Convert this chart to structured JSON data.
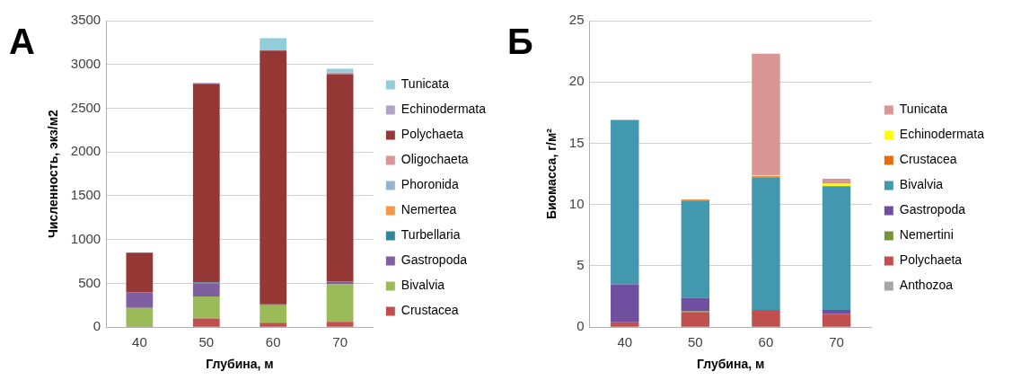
{
  "chart_data": [
    {
      "type": "bar",
      "title": "А",
      "stacked": true,
      "categories": [
        "40",
        "50",
        "60",
        "70"
      ],
      "xlabel": "Глубина, м",
      "ylabel": "Численность, экз/м2",
      "ylim": [
        0,
        3500
      ],
      "yticks": [
        0,
        500,
        1000,
        1500,
        2000,
        2500,
        3000,
        3500
      ],
      "grid": "y",
      "legend": "right",
      "series": [
        {
          "name": "Crustacea",
          "color": "#c0504d",
          "values": [
            10,
            100,
            50,
            60
          ]
        },
        {
          "name": "Bivalvia",
          "color": "#9bbb59",
          "values": [
            210,
            250,
            200,
            430
          ]
        },
        {
          "name": "Gastropoda",
          "color": "#7f5fa0",
          "values": [
            180,
            150,
            10,
            30
          ]
        },
        {
          "name": "Turbellaria",
          "color": "#31859c",
          "values": [
            0,
            10,
            0,
            0
          ]
        },
        {
          "name": "Nemertea",
          "color": "#f79646",
          "values": [
            0,
            0,
            0,
            0
          ]
        },
        {
          "name": "Phoronida",
          "color": "#95b3d7",
          "values": [
            0,
            0,
            0,
            0
          ]
        },
        {
          "name": "Oligochaeta",
          "color": "#d99694",
          "values": [
            0,
            0,
            0,
            0
          ]
        },
        {
          "name": "Polychaeta",
          "color": "#953735",
          "values": [
            450,
            2270,
            2900,
            2370
          ]
        },
        {
          "name": "Echinodermata",
          "color": "#b3a2c7",
          "values": [
            0,
            10,
            0,
            20
          ]
        },
        {
          "name": "Tunicata",
          "color": "#92cddc",
          "values": [
            0,
            0,
            140,
            40
          ]
        }
      ]
    },
    {
      "type": "bar",
      "title": "Б",
      "stacked": true,
      "categories": [
        "40",
        "50",
        "60",
        "70"
      ],
      "xlabel": "Глубина, м",
      "ylabel": "Биомасса, г/м²",
      "ylim": [
        0,
        25
      ],
      "yticks": [
        0,
        5,
        10,
        15,
        20,
        25
      ],
      "grid": "y",
      "legend": "right",
      "series": [
        {
          "name": "Anthozoa",
          "color": "#a6a6a6",
          "values": [
            0,
            0,
            0,
            0
          ]
        },
        {
          "name": "Polychaeta",
          "color": "#c0504d",
          "values": [
            0.4,
            1.2,
            1.4,
            1.1
          ]
        },
        {
          "name": "Nemertini",
          "color": "#77933c",
          "values": [
            0,
            0.1,
            0,
            0
          ]
        },
        {
          "name": "Gastropoda",
          "color": "#6f4f9f",
          "values": [
            3.1,
            1.1,
            0,
            0.3
          ]
        },
        {
          "name": "Bivalvia",
          "color": "#4198af",
          "values": [
            13.4,
            7.9,
            10.8,
            10.1
          ]
        },
        {
          "name": "Crustacea",
          "color": "#e46c0a",
          "values": [
            0,
            0.1,
            0.1,
            0
          ]
        },
        {
          "name": "Echinodermata",
          "color": "#ffff00",
          "values": [
            0,
            0,
            0.1,
            0.2
          ]
        },
        {
          "name": "Tunicata",
          "color": "#d99694",
          "values": [
            0,
            0,
            9.9,
            0.4
          ]
        }
      ]
    }
  ]
}
